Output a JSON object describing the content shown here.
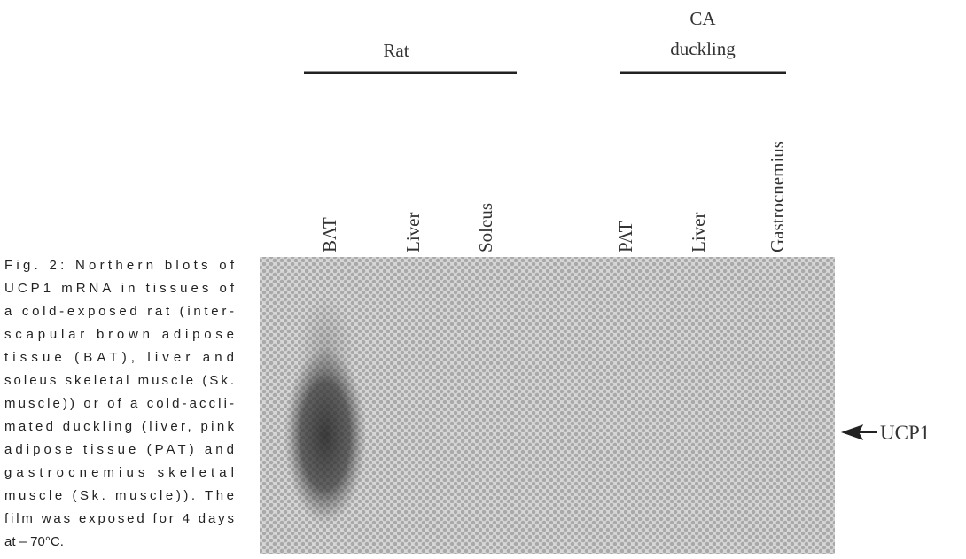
{
  "header": {
    "groups": [
      {
        "label_lines": [
          "Rat"
        ],
        "lanes": [
          "BAT",
          "Liver",
          "Soleus"
        ]
      },
      {
        "label_lines": [
          "CA",
          "duckling"
        ],
        "lanes": [
          "PAT",
          "Liver",
          "Gastrocnemius"
        ]
      }
    ]
  },
  "marker": "UCP1",
  "caption": {
    "lines": [
      "Fig. 2: Northern blots of",
      "UCP1 mRNA in tissues of",
      "a cold-exposed rat (inter-",
      "scapular brown adipose",
      "tissue (BAT), liver and",
      "soleus skeletal muscle (Sk.",
      "muscle)) or of a cold-accli-",
      "mated duckling (liver, pink",
      "adipose tissue (PAT) and",
      "gastrocnemius skeletal",
      "muscle (Sk. muscle)). The",
      "film was exposed for 4 days",
      "at – 70°C."
    ]
  }
}
